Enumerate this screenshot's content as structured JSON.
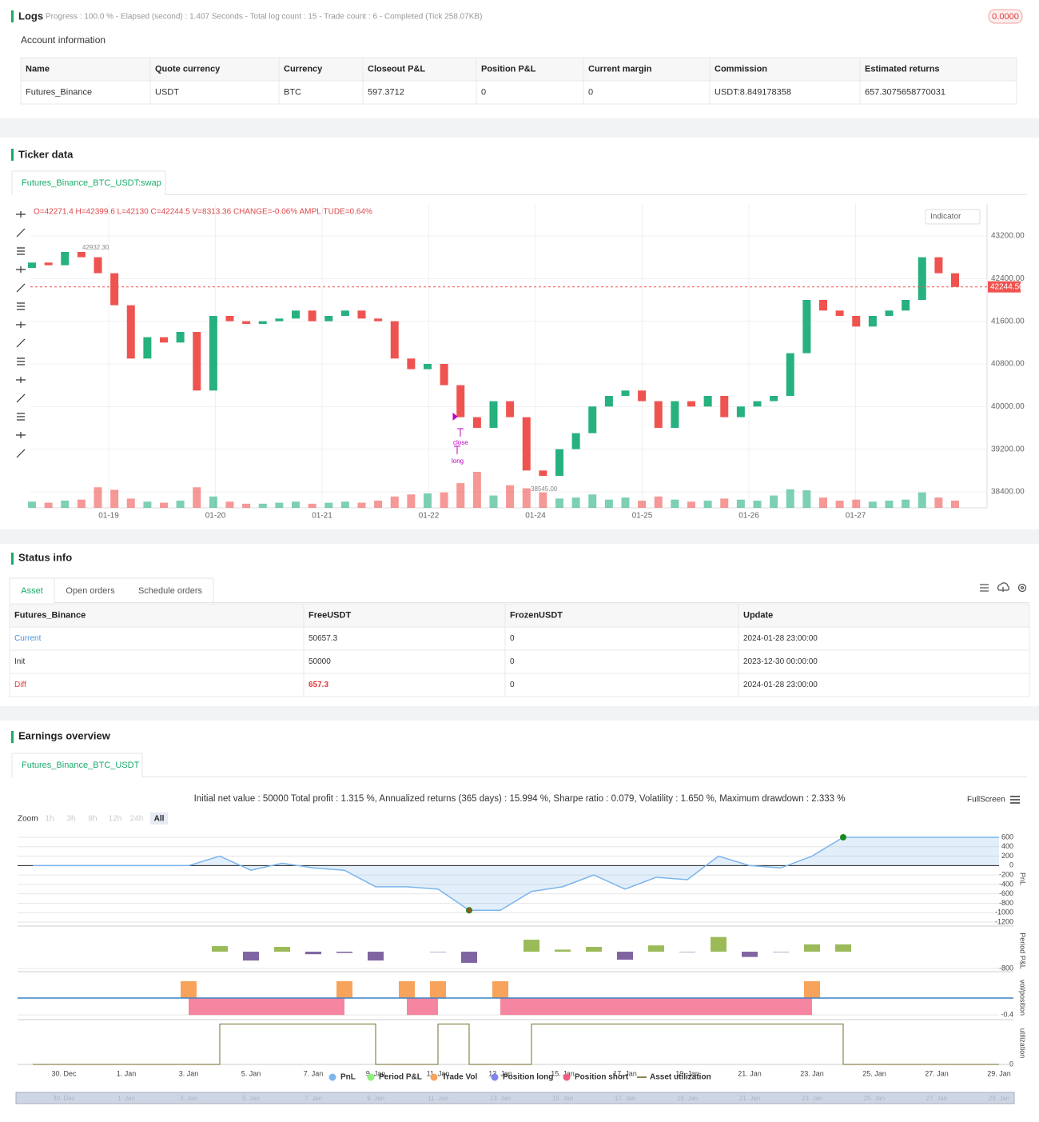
{
  "logs": {
    "title": "Logs",
    "progress": "Progress : 100.0 % - Elapsed (second) : 1.407  Seconds - Total log count : 15 - Trade count : 6 - Completed (Tick 258.07KB)",
    "badge": "0.0000"
  },
  "account": {
    "title": "Account information",
    "headers": [
      "Name",
      "Quote currency",
      "Currency",
      "Closeout P&L",
      "Position P&L",
      "Current margin",
      "Commission",
      "Estimated returns"
    ],
    "rows": [
      [
        "Futures_Binance",
        "USDT",
        "BTC",
        "597.3712",
        "0",
        "0",
        "USDT:8.849178358",
        "657.3075658770031"
      ]
    ]
  },
  "ticker": {
    "title": "Ticker data",
    "tab": "Futures_Binance_BTC_USDT:swap",
    "indicator": "Indicator",
    "ohlc": "O=42271.4 H=42399.6 L=42130 C=42244.5 V=8313.36 CHANGE=-0.06% AMPLITUDE=0.64%",
    "chart": {
      "type": "candlestick",
      "opens": [
        42600,
        42700,
        42650,
        42900,
        42800,
        42500,
        41900,
        40900,
        41300,
        41200,
        41400,
        40300,
        41700,
        41600,
        41550,
        41600,
        41650,
        41800,
        41600,
        41700,
        41800,
        41650,
        41600,
        40900,
        40700,
        40800,
        40400,
        39800,
        39600,
        40100,
        39800,
        38800,
        38700,
        39200,
        39500,
        40000,
        40200,
        40300,
        40100,
        39600,
        40100,
        40000,
        40200,
        39800,
        40000,
        40100,
        40200,
        41000,
        42000,
        41800,
        41700,
        41500,
        41700,
        41800,
        42000,
        42800,
        42500
      ],
      "closes": [
        42700,
        42650,
        42900,
        42800,
        42500,
        41900,
        40900,
        41300,
        41200,
        41400,
        40300,
        41700,
        41600,
        41550,
        41600,
        41650,
        41800,
        41600,
        41700,
        41800,
        41650,
        41600,
        40900,
        40700,
        40800,
        40400,
        39800,
        39600,
        40100,
        39800,
        38800,
        38700,
        39200,
        39500,
        40000,
        40200,
        40300,
        40100,
        39600,
        40100,
        40000,
        40200,
        39800,
        40000,
        40100,
        40200,
        41000,
        42000,
        41800,
        41700,
        41500,
        41700,
        41800,
        42000,
        42800,
        42500,
        42244.5
      ],
      "volumes": [
        12,
        10,
        14,
        16,
        40,
        35,
        18,
        12,
        10,
        14,
        40,
        22,
        12,
        8,
        8,
        10,
        12,
        8,
        10,
        12,
        10,
        14,
        22,
        26,
        28,
        30,
        48,
        70,
        24,
        44,
        38,
        30,
        18,
        20,
        26,
        16,
        20,
        14,
        22,
        16,
        12,
        14,
        18,
        16,
        14,
        24,
        36,
        34,
        20,
        14,
        16,
        12,
        14,
        16,
        30,
        20,
        14
      ],
      "up_color": "#26b17f",
      "down_color": "#ef5350",
      "ylim": [
        38100,
        43800
      ],
      "yticks": [
        {
          "value": 38400,
          "label": "38400.00"
        },
        {
          "value": 39200,
          "label": "39200.00"
        },
        {
          "value": 40000,
          "label": "40000.00"
        },
        {
          "value": 40800,
          "label": "40800.00"
        },
        {
          "value": 41600,
          "label": "41600.00"
        },
        {
          "value": 42400,
          "label": "42400.00"
        },
        {
          "value": 43200,
          "label": "43200.00"
        }
      ],
      "xticks": [
        "01-19",
        "01-20",
        "01-21",
        "01-22",
        "01-24",
        "01-25",
        "01-26",
        "01-27"
      ],
      "last_price": {
        "value": 42244.5,
        "label": "42244.50"
      },
      "high_label": "42932.30",
      "low_label": "38545.00",
      "annotations": [
        "close",
        "long"
      ]
    }
  },
  "status": {
    "title": "Status info",
    "tabs": [
      "Asset",
      "Open orders",
      "Schedule orders"
    ],
    "headers": [
      "Futures_Binance",
      "FreeUSDT",
      "FrozenUSDT",
      "Update"
    ],
    "rows": [
      [
        "Current",
        "50657.3",
        "0",
        "2024-01-28 23:00:00"
      ],
      [
        "Init",
        "50000",
        "0",
        "2023-12-30 00:00:00"
      ],
      [
        "Diff",
        "657.3",
        "0",
        "2024-01-28 23:00:00"
      ]
    ]
  },
  "earnings": {
    "title": "Earnings overview",
    "tab": "Futures_Binance_BTC_USDT",
    "summary": "Initial net value : 50000 Total profit : 1.315 %, Annualized returns (365 days) : 15.994 %, Sharpe ratio : 0.079, Volatility : 1.650 %, Maximum drawdown : 2.333 %",
    "fullscreen": "FullScreen",
    "zoom_label": "Zoom",
    "zoom_buttons": [
      "1h",
      "3h",
      "8h",
      "12h",
      "24h",
      "All"
    ],
    "xticks": [
      "30. Dec",
      "1. Jan",
      "3. Jan",
      "5. Jan",
      "7. Jan",
      "9. Jan",
      "11. Jan",
      "13. Jan",
      "15. Jan",
      "17. Jan",
      "19. Jan",
      "21. Jan",
      "23. Jan",
      "25. Jan",
      "27. Jan",
      "29. Jan"
    ],
    "legend": [
      {
        "name": "PnL",
        "color": "#7cb5ec"
      },
      {
        "name": "Period P&L",
        "color": "#90ed7d"
      },
      {
        "name": "Trade Vol",
        "color": "#f7a35c"
      },
      {
        "name": "Position long",
        "color": "#8085e9"
      },
      {
        "name": "Position short",
        "color": "#f15c80"
      },
      {
        "name": "Asset utilization",
        "color": "#8d8650"
      }
    ],
    "pnl": {
      "type": "area",
      "axis_label": "PnL",
      "color": "#7cb5ec",
      "x": [
        "29. Dec",
        "3. Jan",
        "4. Jan",
        "5. Jan",
        "6. Jan",
        "7. Jan",
        "8. Jan",
        "9. Jan",
        "10. Jan",
        "11. Jan",
        "12. Jan",
        "13. Jan",
        "14. Jan",
        "15. Jan",
        "16. Jan",
        "17. Jan",
        "18. Jan",
        "19. Jan",
        "20. Jan",
        "21. Jan",
        "22. Jan",
        "23. Jan",
        "24. Jan",
        "29. Jan"
      ],
      "values": [
        0,
        0,
        200,
        -100,
        50,
        -50,
        -100,
        -450,
        -450,
        -500,
        -950,
        -950,
        -550,
        -450,
        -200,
        -500,
        -250,
        -300,
        200,
        0,
        -50,
        200,
        600,
        600
      ],
      "ylim": [
        -1285,
        719
      ],
      "yticks": [
        -1200,
        -1000,
        -800,
        -600,
        -400,
        -200,
        0,
        200,
        400,
        600
      ]
    },
    "period_pnl": {
      "type": "bar",
      "axis_label": "Period P&L",
      "positive_color": "#9bbb59",
      "negative_color": "#8064a2",
      "x": [
        "4. Jan",
        "5. Jan",
        "6. Jan",
        "7. Jan",
        "8. Jan",
        "9. Jan",
        "11. Jan",
        "12. Jan",
        "14. Jan",
        "15. Jan",
        "16. Jan",
        "17. Jan",
        "18. Jan",
        "19. Jan",
        "20. Jan",
        "21. Jan",
        "22. Jan",
        "23. Jan",
        "24. Jan"
      ],
      "values": [
        267,
        -420,
        230,
        -120,
        -60,
        -420,
        -20,
        -530,
        570,
        100,
        230,
        -380,
        300,
        -20,
        700,
        -250,
        -20,
        350,
        350
      ],
      "ylim": [
        -950,
        1030
      ],
      "yticks": [
        -800
      ]
    },
    "vol_position": {
      "type": "bar",
      "axis_label": "vol/position",
      "ylim": [
        -0.51,
        0.53
      ],
      "yticks": [
        -0.4
      ],
      "trade_vol": {
        "x": [
          "3. Jan",
          "8. Jan",
          "10. Jan",
          "11. Jan",
          "13. Jan",
          "23. Jan"
        ],
        "values": [
          0.4,
          0.4,
          0.4,
          0.4,
          0.4,
          0.4
        ]
      },
      "position_short": [
        {
          "start": "3. Jan",
          "end": "8. Jan",
          "value": -0.4
        },
        {
          "start": "10. Jan",
          "end": "11. Jan",
          "value": -0.4
        },
        {
          "start": "13. Jan",
          "end": "23. Jan",
          "value": -0.4
        }
      ]
    },
    "utilization": {
      "type": "step",
      "axis_label": "utilization",
      "color": "#8d8650",
      "x": [
        "29. Dec",
        "4. Jan",
        "9. Jan",
        "11. Jan",
        "12. Jan",
        "14. Jan",
        "24. Jan",
        "29. Jan"
      ],
      "values": [
        0,
        1,
        0,
        1,
        0,
        1,
        0,
        0
      ],
      "ylim": [
        0,
        1.05
      ],
      "yticks": [
        0
      ]
    }
  }
}
